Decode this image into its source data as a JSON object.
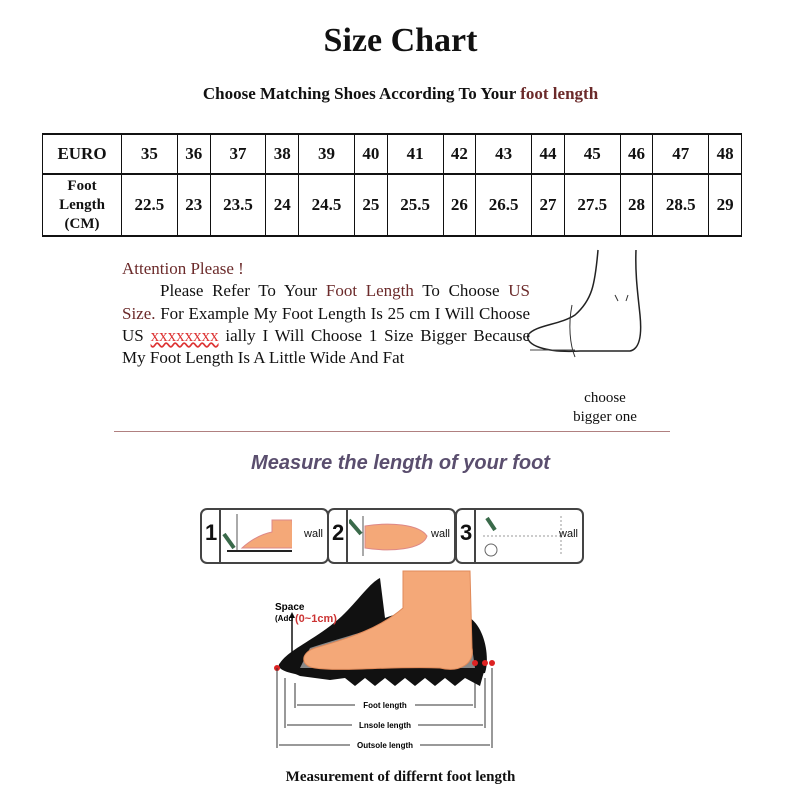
{
  "title": "Size Chart",
  "subtitle": {
    "prefix": "Choose Matching Shoes According To Your ",
    "highlight": "foot length"
  },
  "table": {
    "row1_header": "EURO",
    "row2_header": [
      "Foot",
      "Length",
      "(CM)"
    ],
    "euro": [
      "35",
      "36",
      "37",
      "38",
      "39",
      "40",
      "41",
      "42",
      "43",
      "44",
      "45",
      "46",
      "47",
      "48"
    ],
    "cm": [
      "22.5",
      "23",
      "23.5",
      "24",
      "24.5",
      "25",
      "25.5",
      "26",
      "26.5",
      "27",
      "27.5",
      "28",
      "28.5",
      "29"
    ]
  },
  "attention": {
    "heading": "Attention Please !",
    "t1": "Please Refer To Your ",
    "t2": "Foot Length",
    "t3": " To Choose ",
    "t4": "US Size.",
    "t5": " For Example My Foot Length Is 25 cm I Will Choose US ",
    "t6": "xxxxxxxx",
    "t7": " ially I Will Choose 1 Size Bigger Because My Foot Length Is A Little Wide And Fat"
  },
  "choose_note": [
    "choose",
    "bigger one"
  ],
  "measure_heading": "Measure the length of your foot",
  "steps": [
    {
      "n": "1",
      "wall": "wall"
    },
    {
      "n": "2",
      "wall": "wall"
    },
    {
      "n": "3",
      "wall": "wall"
    }
  ],
  "diagram": {
    "space": "Space",
    "add": "(Add",
    "range": "(0~1cm)",
    "foot": "Foot length",
    "insole": "Lnsole length",
    "outsole": "Outsole length"
  },
  "caption": "Measurement of differnt foot length",
  "colors": {
    "accent": "#6b2a2a",
    "heading": "#5a4e6e",
    "skin": "#f4a878"
  }
}
